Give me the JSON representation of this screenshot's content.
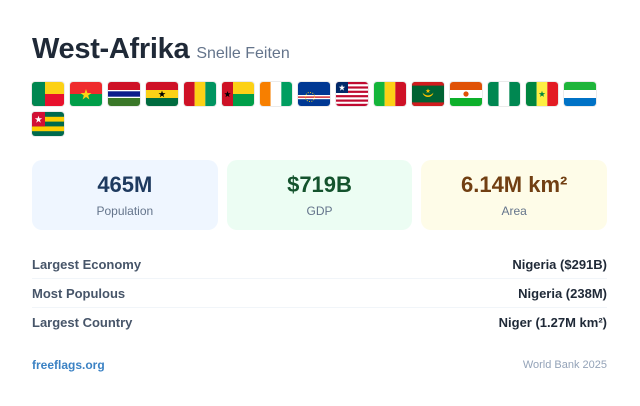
{
  "header": {
    "title": "West-Afrika",
    "subtitle": "Snelle Feiten"
  },
  "flags": [
    {
      "country": "Benin",
      "icon": "flag-benin-icon"
    },
    {
      "country": "Burkina Faso",
      "icon": "flag-burkina-faso-icon"
    },
    {
      "country": "Gambia",
      "icon": "flag-gambia-icon"
    },
    {
      "country": "Ghana",
      "icon": "flag-ghana-icon"
    },
    {
      "country": "Guinea",
      "icon": "flag-guinea-icon"
    },
    {
      "country": "Guinea-Bissau",
      "icon": "flag-guinea-bissau-icon"
    },
    {
      "country": "Ivory Coast",
      "icon": "flag-ivory-coast-icon"
    },
    {
      "country": "Cape Verde",
      "icon": "flag-cape-verde-icon"
    },
    {
      "country": "Liberia",
      "icon": "flag-liberia-icon"
    },
    {
      "country": "Mali",
      "icon": "flag-mali-icon"
    },
    {
      "country": "Mauritania",
      "icon": "flag-mauritania-icon"
    },
    {
      "country": "Niger",
      "icon": "flag-niger-icon"
    },
    {
      "country": "Nigeria",
      "icon": "flag-nigeria-icon"
    },
    {
      "country": "Senegal",
      "icon": "flag-senegal-icon"
    },
    {
      "country": "Sierra Leone",
      "icon": "flag-sierra-leone-icon"
    },
    {
      "country": "Togo",
      "icon": "flag-togo-icon"
    }
  ],
  "stats": {
    "population": {
      "value": "465M",
      "label": "Population",
      "color": "#1e3a5f",
      "bg": "#eff6ff"
    },
    "gdp": {
      "value": "$719B",
      "label": "GDP",
      "color": "#14532d",
      "bg": "#ecfdf3"
    },
    "area": {
      "value": "6.14M km²",
      "label": "Area",
      "color": "#713f12",
      "bg": "#fefce8"
    }
  },
  "facts": [
    {
      "label": "Largest Economy",
      "value": "Nigeria ($291B)"
    },
    {
      "label": "Most Populous",
      "value": "Nigeria (238M)"
    },
    {
      "label": "Largest Country",
      "value": "Niger (1.27M km²)"
    }
  ],
  "footer": {
    "link": "freeflags.org",
    "source": "World Bank 2025"
  }
}
